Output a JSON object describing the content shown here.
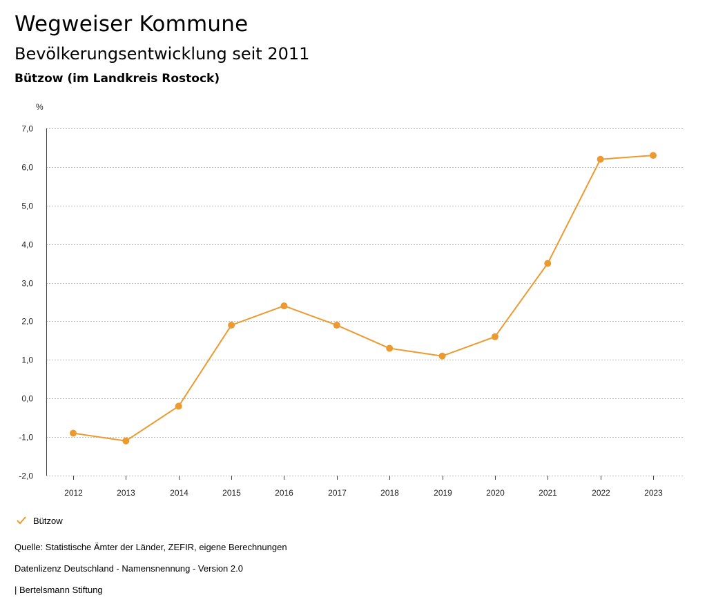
{
  "header": {
    "title": "Wegweiser Kommune",
    "subtitle": "Bevölkerungsentwicklung seit 2011",
    "region": "Bützow (im Landkreis Rostock)"
  },
  "colors": {
    "series": "#ec9a2f",
    "grid": "#b9b9b9",
    "axis": "#444444"
  },
  "chart_data": {
    "type": "line",
    "title": "Bevölkerungsentwicklung seit 2011",
    "ylabel": "%",
    "xlabel": "",
    "ylim": [
      -2,
      7
    ],
    "yticks": [
      -2,
      -1,
      0,
      1,
      2,
      3,
      4,
      5,
      6,
      7
    ],
    "ytick_labels": [
      "-2,0",
      "-1,0",
      "0,0",
      "1,0",
      "2,0",
      "3,0",
      "4,0",
      "5,0",
      "6,0",
      "7,0"
    ],
    "categories": [
      "2012",
      "2013",
      "2014",
      "2015",
      "2016",
      "2017",
      "2018",
      "2019",
      "2020",
      "2021",
      "2022",
      "2023"
    ],
    "series": [
      {
        "name": "Bützow",
        "values": [
          -0.9,
          -1.1,
          -0.2,
          1.9,
          2.4,
          1.9,
          1.3,
          1.1,
          1.6,
          3.5,
          6.2,
          6.3
        ]
      }
    ],
    "grid": true,
    "legend": "bottom-left"
  },
  "legend": {
    "label": "Bützow"
  },
  "footer": {
    "source": "Quelle: Statistische Ämter der Länder, ZEFIR, eigene Berechnungen",
    "license": "Datenlizenz Deutschland - Namensnennung - Version 2.0",
    "publisher": "| Bertelsmann Stiftung"
  }
}
